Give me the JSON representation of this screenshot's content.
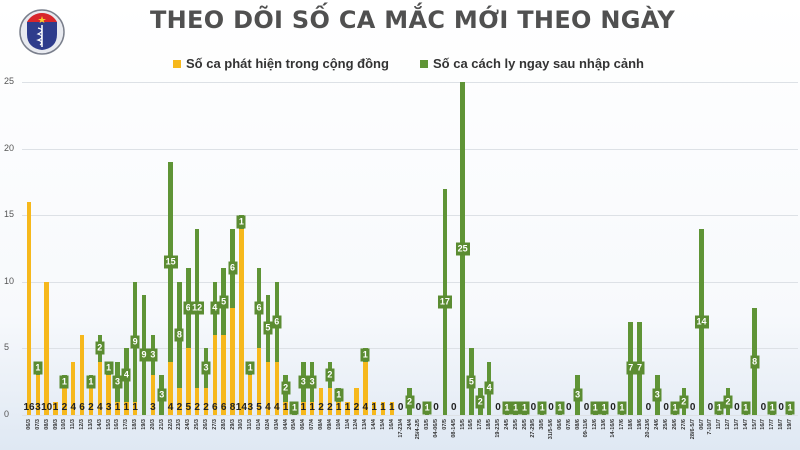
{
  "header": {
    "title": "THEO DÕI SỐ CA MẮC MỚI THEO NGÀY",
    "logo": {
      "top_text": "BỘ Y TẾ",
      "bottom_text": "MINISTRY OF HEALTH",
      "icon": "caduceus-icon"
    }
  },
  "colors": {
    "community": "#f6b81c",
    "quarantine": "#5f9436",
    "label_bg": "#5b8c32",
    "title": "#505050"
  },
  "chart_data": {
    "type": "bar",
    "stacked": true,
    "title": "THEO DÕI SỐ CA MẮC MỚI THEO NGÀY",
    "xlabel": "",
    "ylabel": "",
    "ylim": [
      0,
      25
    ],
    "yticks": [
      0,
      5,
      10,
      15,
      20,
      25
    ],
    "grid": true,
    "legend_position": "top",
    "categories": [
      "06/3",
      "07/3",
      "08/3",
      "09/3",
      "10/3",
      "11/3",
      "12/3",
      "13/3",
      "14/3",
      "15/3",
      "16/3",
      "17/3",
      "18/3",
      "19/3",
      "20/3",
      "21/3",
      "22/3",
      "23/3",
      "24/3",
      "25/3",
      "26/3",
      "27/3",
      "28/3",
      "29/3",
      "30/3",
      "31/3",
      "01/4",
      "02/4",
      "03/4",
      "04/4",
      "05/4",
      "06/4",
      "07/4",
      "08/4",
      "09/4",
      "10/4",
      "11/4",
      "12/4",
      "13/4",
      "14/4",
      "15/4",
      "16/4",
      "17-23/4",
      "24/4",
      "25/4-2/5",
      "03/5",
      "04-06/5",
      "07/5",
      "08-14/5",
      "15/5",
      "16/5",
      "17/5",
      "18/5",
      "19-23/5",
      "24/5",
      "25/5",
      "26/5",
      "27-29/5",
      "30/5",
      "31/5-5/6",
      "06/6",
      "07/6",
      "08/6",
      "09-11/6",
      "12/6",
      "13/6",
      "14-16/6",
      "17/6",
      "18/6",
      "19/6",
      "20-23/6",
      "24/6",
      "25/6",
      "26/6",
      "27/6",
      "28/6-5/7",
      "06/7",
      "7-10/7",
      "11/7",
      "12/7",
      "13/7",
      "14/7",
      "15/7",
      "16/7",
      "17/7",
      "18/7",
      "19/7"
    ],
    "series": [
      {
        "name": "Số ca phát hiện trong cộng đồng",
        "color": "#f6b81c",
        "values": [
          16,
          3,
          10,
          1,
          2,
          4,
          6,
          2,
          4,
          3,
          1,
          1,
          1,
          0,
          3,
          0,
          4,
          2,
          5,
          2,
          2,
          6,
          6,
          8,
          14,
          3,
          5,
          4,
          4,
          1,
          0,
          1,
          1,
          2,
          2,
          1,
          1,
          2,
          4,
          1,
          1,
          1,
          0,
          0,
          0,
          0,
          0,
          0,
          0,
          0,
          0,
          0,
          0,
          0,
          0,
          0,
          0,
          0,
          0,
          0,
          0,
          0,
          0,
          0,
          0,
          0,
          0,
          0,
          0,
          0,
          0,
          0,
          0,
          0,
          0,
          0,
          0,
          0,
          0,
          0,
          0,
          0,
          0,
          0,
          0,
          0,
          0
        ]
      },
      {
        "name": "Số ca cách ly ngay sau nhập cảnh",
        "color": "#5f9436",
        "values": [
          0,
          1,
          0,
          0,
          1,
          0,
          0,
          1,
          2,
          1,
          3,
          4,
          9,
          9,
          3,
          3,
          15,
          8,
          6,
          12,
          3,
          4,
          5,
          6,
          1,
          1,
          6,
          5,
          6,
          2,
          1,
          3,
          3,
          0,
          2,
          1,
          0,
          0,
          1,
          0,
          0,
          0,
          0,
          2,
          0,
          1,
          0,
          17,
          0,
          25,
          5,
          2,
          4,
          0,
          1,
          1,
          1,
          0,
          1,
          0,
          1,
          0,
          3,
          0,
          1,
          1,
          0,
          1,
          7,
          7,
          0,
          3,
          0,
          1,
          2,
          0,
          14,
          0,
          1,
          2,
          0,
          1,
          8,
          0,
          1,
          0,
          1
        ]
      }
    ]
  }
}
